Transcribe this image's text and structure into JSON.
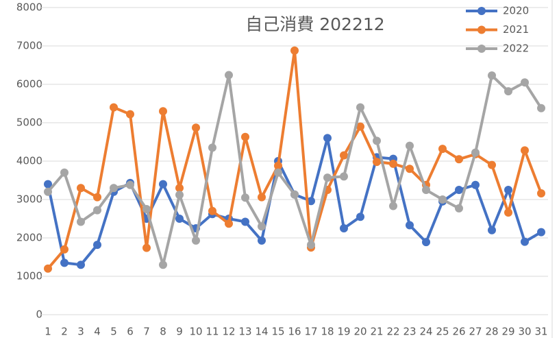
{
  "chart_data": {
    "type": "line",
    "title": "自己消費 202212",
    "categories": [
      "1",
      "2",
      "3",
      "4",
      "5",
      "6",
      "7",
      "8",
      "9",
      "10",
      "11",
      "12",
      "13",
      "14",
      "15",
      "16",
      "17",
      "18",
      "19",
      "20",
      "21",
      "22",
      "23",
      "24",
      "25",
      "26",
      "27",
      "28",
      "29",
      "30",
      "31"
    ],
    "series": [
      {
        "name": "2020",
        "color": "#4472c4",
        "values": [
          3400,
          1350,
          1300,
          1820,
          3200,
          3430,
          2500,
          3400,
          2500,
          2250,
          2620,
          2500,
          2420,
          1930,
          4000,
          3130,
          2960,
          4600,
          2250,
          2550,
          4100,
          4060,
          2330,
          1890,
          2950,
          3250,
          3380,
          2200,
          3250,
          1900,
          2150
        ]
      },
      {
        "name": "2021",
        "color": "#ed7d31",
        "values": [
          1200,
          1700,
          3300,
          3060,
          5400,
          5220,
          1740,
          5300,
          3300,
          4870,
          2700,
          2370,
          4630,
          3060,
          3880,
          6880,
          1750,
          3250,
          4150,
          4900,
          3980,
          3930,
          3800,
          3380,
          4320,
          4050,
          4180,
          3900,
          2660,
          4280,
          3160
        ]
      },
      {
        "name": "2022",
        "color": "#a5a5a5",
        "values": [
          3200,
          3700,
          2420,
          2720,
          3300,
          3380,
          2750,
          1300,
          3120,
          1930,
          4350,
          6240,
          3050,
          2300,
          3700,
          3130,
          1820,
          3570,
          3600,
          5400,
          4530,
          2830,
          4400,
          3250,
          3000,
          2770,
          4220,
          6230,
          5820,
          6050,
          5380
        ]
      }
    ],
    "ylim": [
      0,
      8000
    ],
    "yticks": [
      0,
      1000,
      2000,
      3000,
      4000,
      5000,
      6000,
      7000,
      8000
    ],
    "grid": true,
    "legend": "top-right"
  }
}
